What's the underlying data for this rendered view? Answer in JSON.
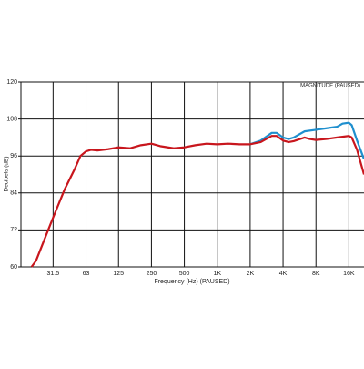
{
  "chart_data": {
    "type": "line",
    "annotation": "MAGNITUDE (PAUSED)",
    "x_label": "Frequency (Hz) (PAUSED)",
    "y_label": "Decibels (dB)",
    "xscale": "log",
    "xlim": [
      16,
      22000
    ],
    "xticks": [
      31.5,
      63,
      125,
      250,
      500,
      {
        "value": 1000,
        "label": "1K"
      },
      {
        "value": 2000,
        "label": "2K"
      },
      {
        "value": 4000,
        "label": "4K"
      },
      {
        "value": 8000,
        "label": "8K"
      },
      {
        "value": 16000,
        "label": "16K"
      }
    ],
    "ylim": [
      60,
      120
    ],
    "yticks": [
      60,
      72,
      84,
      96,
      108,
      120
    ],
    "grid": true,
    "series": [
      {
        "color": "#1f8fce",
        "x": [
          2000,
          2500,
          3150,
          3500,
          4000,
          4500,
          5000,
          6300,
          8000,
          10000,
          12500,
          14000,
          16000,
          17000,
          19000,
          22000
        ],
        "values": [
          99.8,
          101,
          103.5,
          103.5,
          102,
          101.5,
          102,
          104,
          104.5,
          105,
          105.5,
          106.5,
          106.8,
          106,
          101,
          95
        ]
      },
      {
        "color": "#c8161d",
        "x": [
          20,
          22,
          25,
          31.5,
          40,
          50,
          56,
          63,
          70,
          80,
          100,
          125,
          160,
          200,
          250,
          300,
          400,
          500,
          630,
          800,
          1000,
          1250,
          1600,
          2000,
          2500,
          3150,
          3500,
          4000,
          4500,
          5000,
          6300,
          7000,
          8000,
          10000,
          12500,
          16000,
          17000,
          19000,
          22000
        ],
        "values": [
          60,
          62,
          67,
          76,
          85,
          92,
          96,
          97.5,
          98,
          97.8,
          98.2,
          98.8,
          98.5,
          99.5,
          100,
          99.2,
          98.5,
          98.8,
          99.5,
          100,
          99.8,
          100,
          99.8,
          99.8,
          100.5,
          102.5,
          102.5,
          101,
          100.5,
          100.8,
          102,
          101.5,
          101.2,
          101.5,
          102,
          102.5,
          102,
          98,
          90
        ]
      }
    ]
  }
}
